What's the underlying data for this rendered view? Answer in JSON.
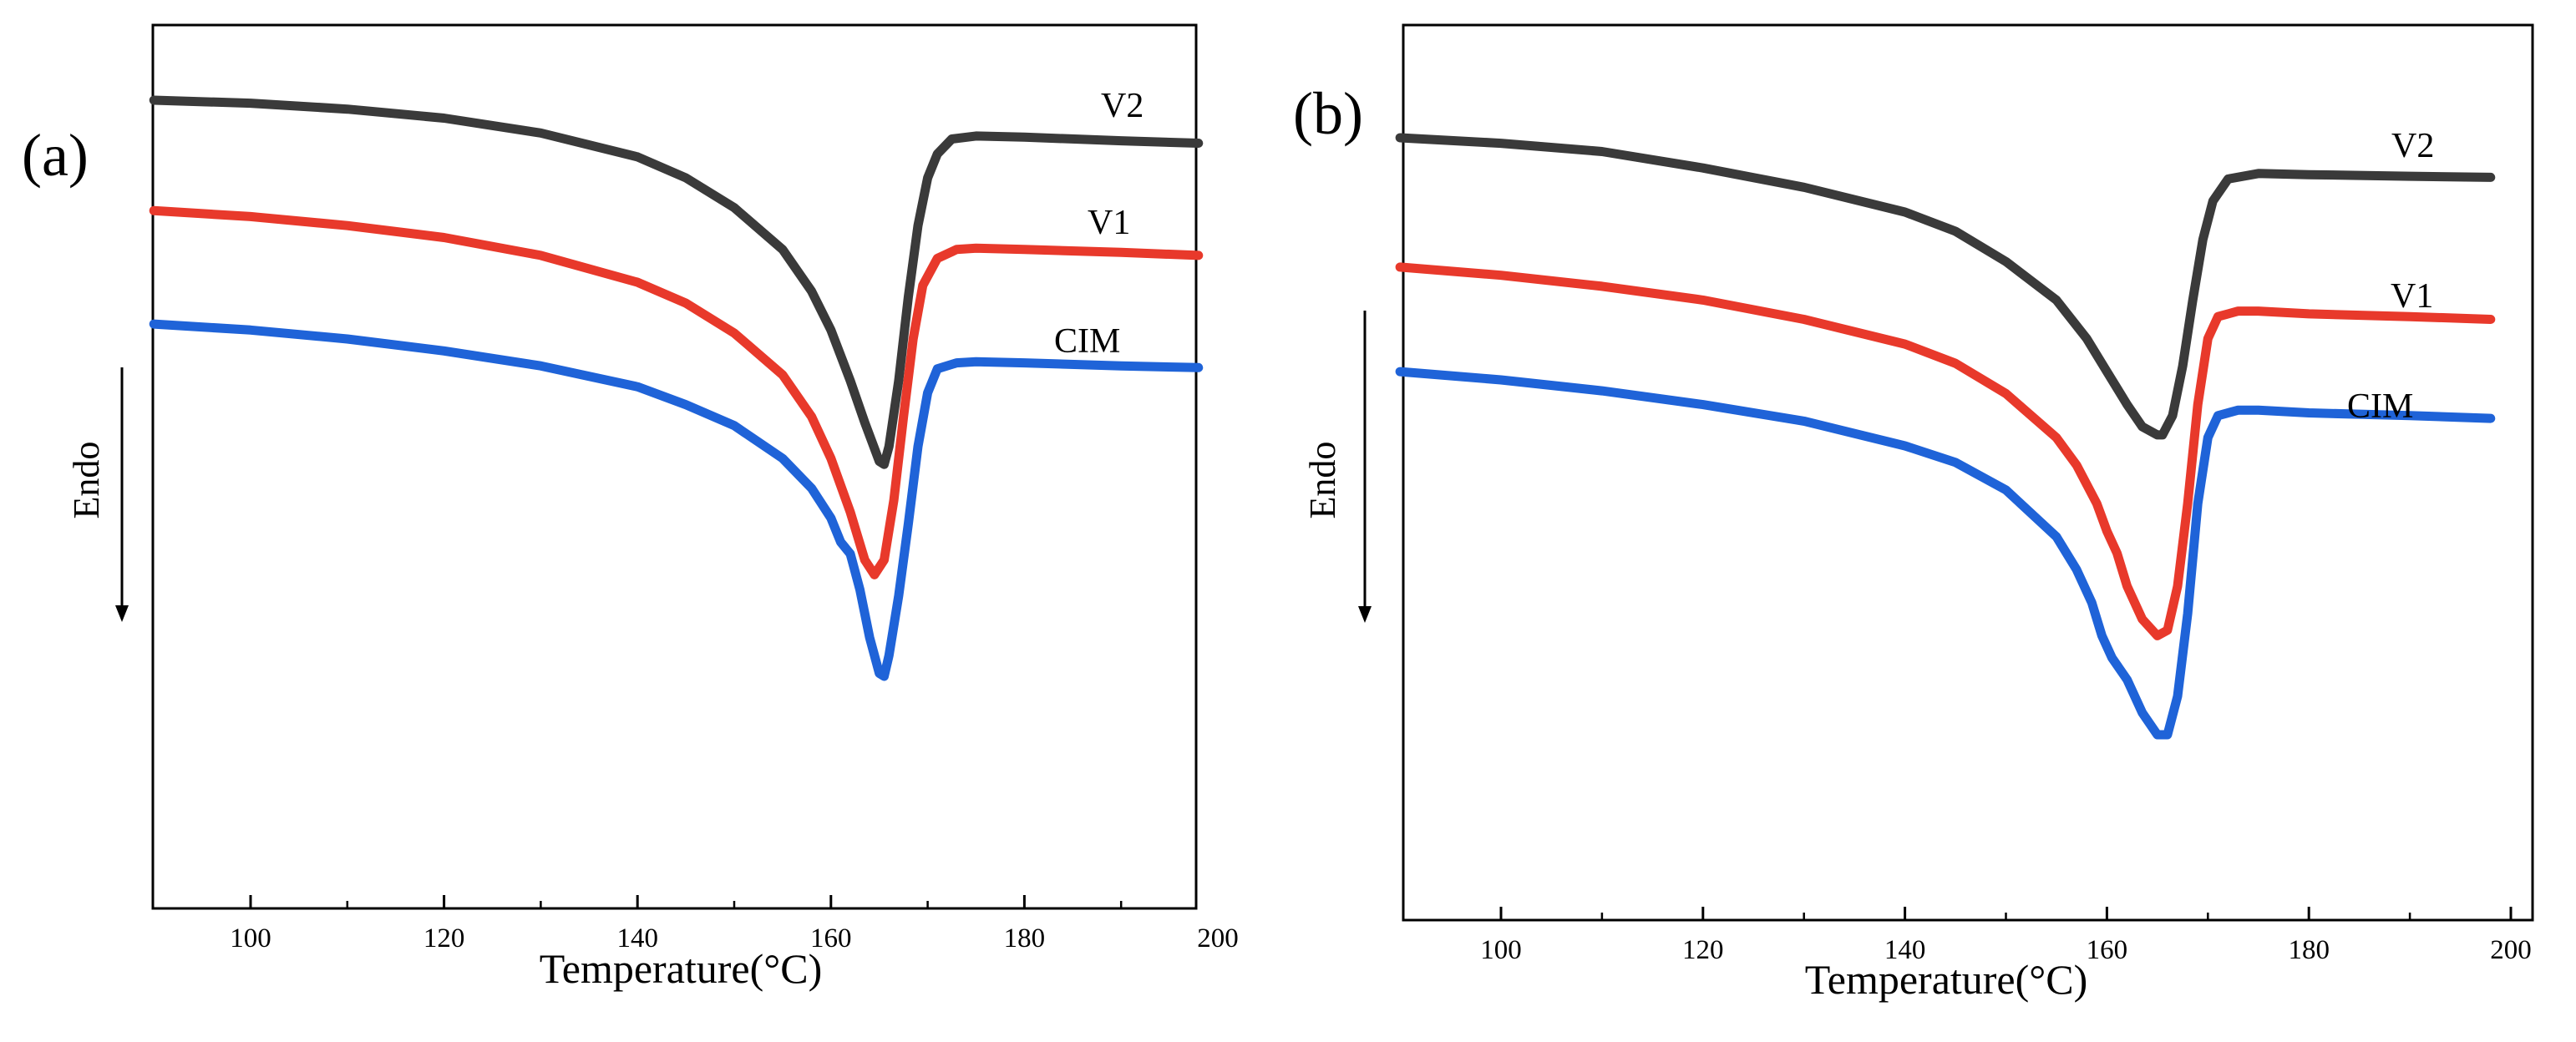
{
  "chart_data": [
    {
      "type": "line",
      "panel_label": "(a)",
      "xlabel": "Temperature(°C)",
      "ylabel": "Endo",
      "xlim": [
        90,
        198
      ],
      "x_ticks": [
        100,
        120,
        140,
        160,
        180,
        200
      ],
      "y_axis": "no numeric scale; arbitrary heat-flow units, down arrow = endothermic",
      "grid": false,
      "series": [
        {
          "name": "V2",
          "color": "#3a3a3a",
          "peak_x": 165.5,
          "points": [
            [
              90,
              0.1
            ],
            [
              100,
              0.15
            ],
            [
              110,
              0.25
            ],
            [
              120,
              0.4
            ],
            [
              130,
              0.65
            ],
            [
              140,
              1.05
            ],
            [
              145,
              1.4
            ],
            [
              150,
              1.9
            ],
            [
              155,
              2.6
            ],
            [
              158,
              3.3
            ],
            [
              160,
              3.95
            ],
            [
              162,
              4.8
            ],
            [
              163.5,
              5.5
            ],
            [
              165,
              6.15
            ],
            [
              165.5,
              6.2
            ],
            [
              166,
              5.9
            ],
            [
              167,
              4.8
            ],
            [
              168,
              3.4
            ],
            [
              169,
              2.2
            ],
            [
              170,
              1.4
            ],
            [
              171,
              1.0
            ],
            [
              172.5,
              0.75
            ],
            [
              175,
              0.7
            ],
            [
              180,
              0.72
            ],
            [
              190,
              0.78
            ],
            [
              198,
              0.82
            ]
          ]
        },
        {
          "name": "V1",
          "color": "#e8392b",
          "peak_x": 164.5,
          "points": [
            [
              90,
              1.95
            ],
            [
              100,
              2.05
            ],
            [
              110,
              2.2
            ],
            [
              120,
              2.4
            ],
            [
              130,
              2.7
            ],
            [
              140,
              3.15
            ],
            [
              145,
              3.5
            ],
            [
              150,
              4.0
            ],
            [
              155,
              4.7
            ],
            [
              158,
              5.4
            ],
            [
              160,
              6.1
            ],
            [
              162,
              7.0
            ],
            [
              163.5,
              7.8
            ],
            [
              164.5,
              8.05
            ],
            [
              165.5,
              7.8
            ],
            [
              166.5,
              6.8
            ],
            [
              167.5,
              5.4
            ],
            [
              168.5,
              4.1
            ],
            [
              169.5,
              3.2
            ],
            [
              171,
              2.75
            ],
            [
              173,
              2.6
            ],
            [
              175,
              2.58
            ],
            [
              180,
              2.6
            ],
            [
              190,
              2.65
            ],
            [
              198,
              2.7
            ]
          ]
        },
        {
          "name": "CIM",
          "color": "#1f63d8",
          "peak_x": 165.2,
          "points": [
            [
              90,
              3.85
            ],
            [
              100,
              3.95
            ],
            [
              110,
              4.1
            ],
            [
              120,
              4.3
            ],
            [
              130,
              4.55
            ],
            [
              140,
              4.9
            ],
            [
              145,
              5.2
            ],
            [
              150,
              5.55
            ],
            [
              155,
              6.1
            ],
            [
              158,
              6.6
            ],
            [
              160,
              7.1
            ],
            [
              161,
              7.5
            ],
            [
              162,
              7.7
            ],
            [
              163,
              8.3
            ],
            [
              164,
              9.1
            ],
            [
              165,
              9.7
            ],
            [
              165.5,
              9.75
            ],
            [
              166,
              9.4
            ],
            [
              167,
              8.4
            ],
            [
              168,
              7.2
            ],
            [
              169,
              5.9
            ],
            [
              170,
              5.0
            ],
            [
              171,
              4.6
            ],
            [
              173,
              4.5
            ],
            [
              175,
              4.48
            ],
            [
              180,
              4.5
            ],
            [
              190,
              4.55
            ],
            [
              198,
              4.58
            ]
          ]
        }
      ]
    },
    {
      "type": "line",
      "panel_label": "(b)",
      "xlabel": "Temperature(°C)",
      "ylabel": "Endo",
      "xlim": [
        90,
        198
      ],
      "x_ticks": [
        100,
        120,
        140,
        160,
        180,
        200
      ],
      "y_axis": "no numeric scale; arbitrary heat-flow units, down arrow = endothermic",
      "grid": false,
      "series": [
        {
          "name": "V2",
          "color": "#3a3a3a",
          "peak_x": 165.3,
          "points": [
            [
              90,
              0.15
            ],
            [
              100,
              0.25
            ],
            [
              110,
              0.4
            ],
            [
              120,
              0.7
            ],
            [
              130,
              1.05
            ],
            [
              140,
              1.5
            ],
            [
              145,
              1.85
            ],
            [
              150,
              2.4
            ],
            [
              155,
              3.1
            ],
            [
              158,
              3.8
            ],
            [
              160,
              4.4
            ],
            [
              162,
              5.0
            ],
            [
              163.5,
              5.4
            ],
            [
              165,
              5.55
            ],
            [
              165.5,
              5.55
            ],
            [
              166.5,
              5.2
            ],
            [
              167.5,
              4.3
            ],
            [
              168.5,
              3.1
            ],
            [
              169.5,
              2.0
            ],
            [
              170.5,
              1.3
            ],
            [
              172,
              0.9
            ],
            [
              175,
              0.8
            ],
            [
              180,
              0.82
            ],
            [
              190,
              0.85
            ],
            [
              198,
              0.87
            ]
          ]
        },
        {
          "name": "V1",
          "color": "#e8392b",
          "peak_x": 165.0,
          "points": [
            [
              90,
              2.5
            ],
            [
              100,
              2.65
            ],
            [
              110,
              2.85
            ],
            [
              120,
              3.1
            ],
            [
              130,
              3.45
            ],
            [
              140,
              3.9
            ],
            [
              145,
              4.25
            ],
            [
              150,
              4.8
            ],
            [
              155,
              5.6
            ],
            [
              157,
              6.1
            ],
            [
              159,
              6.8
            ],
            [
              160,
              7.3
            ],
            [
              161,
              7.7
            ],
            [
              162,
              8.3
            ],
            [
              163.5,
              8.9
            ],
            [
              165,
              9.2
            ],
            [
              166,
              9.1
            ],
            [
              167,
              8.3
            ],
            [
              168,
              6.8
            ],
            [
              169,
              5.0
            ],
            [
              170,
              3.8
            ],
            [
              171,
              3.4
            ],
            [
              173,
              3.3
            ],
            [
              175,
              3.3
            ],
            [
              180,
              3.35
            ],
            [
              190,
              3.4
            ],
            [
              198,
              3.45
            ]
          ]
        },
        {
          "name": "CIM",
          "color": "#1f63d8",
          "peak_x": 165.5,
          "points": [
            [
              90,
              4.4
            ],
            [
              100,
              4.55
            ],
            [
              110,
              4.75
            ],
            [
              120,
              5.0
            ],
            [
              130,
              5.3
            ],
            [
              140,
              5.75
            ],
            [
              145,
              6.05
            ],
            [
              150,
              6.55
            ],
            [
              155,
              7.4
            ],
            [
              157,
              8.0
            ],
            [
              158.5,
              8.6
            ],
            [
              159.5,
              9.2
            ],
            [
              160.5,
              9.6
            ],
            [
              162,
              10.0
            ],
            [
              163.5,
              10.6
            ],
            [
              165,
              11.0
            ],
            [
              166,
              11.0
            ],
            [
              167,
              10.3
            ],
            [
              168,
              8.8
            ],
            [
              169,
              6.8
            ],
            [
              170,
              5.6
            ],
            [
              171,
              5.2
            ],
            [
              173,
              5.1
            ],
            [
              175,
              5.1
            ],
            [
              180,
              5.15
            ],
            [
              190,
              5.2
            ],
            [
              198,
              5.25
            ]
          ]
        }
      ]
    }
  ]
}
